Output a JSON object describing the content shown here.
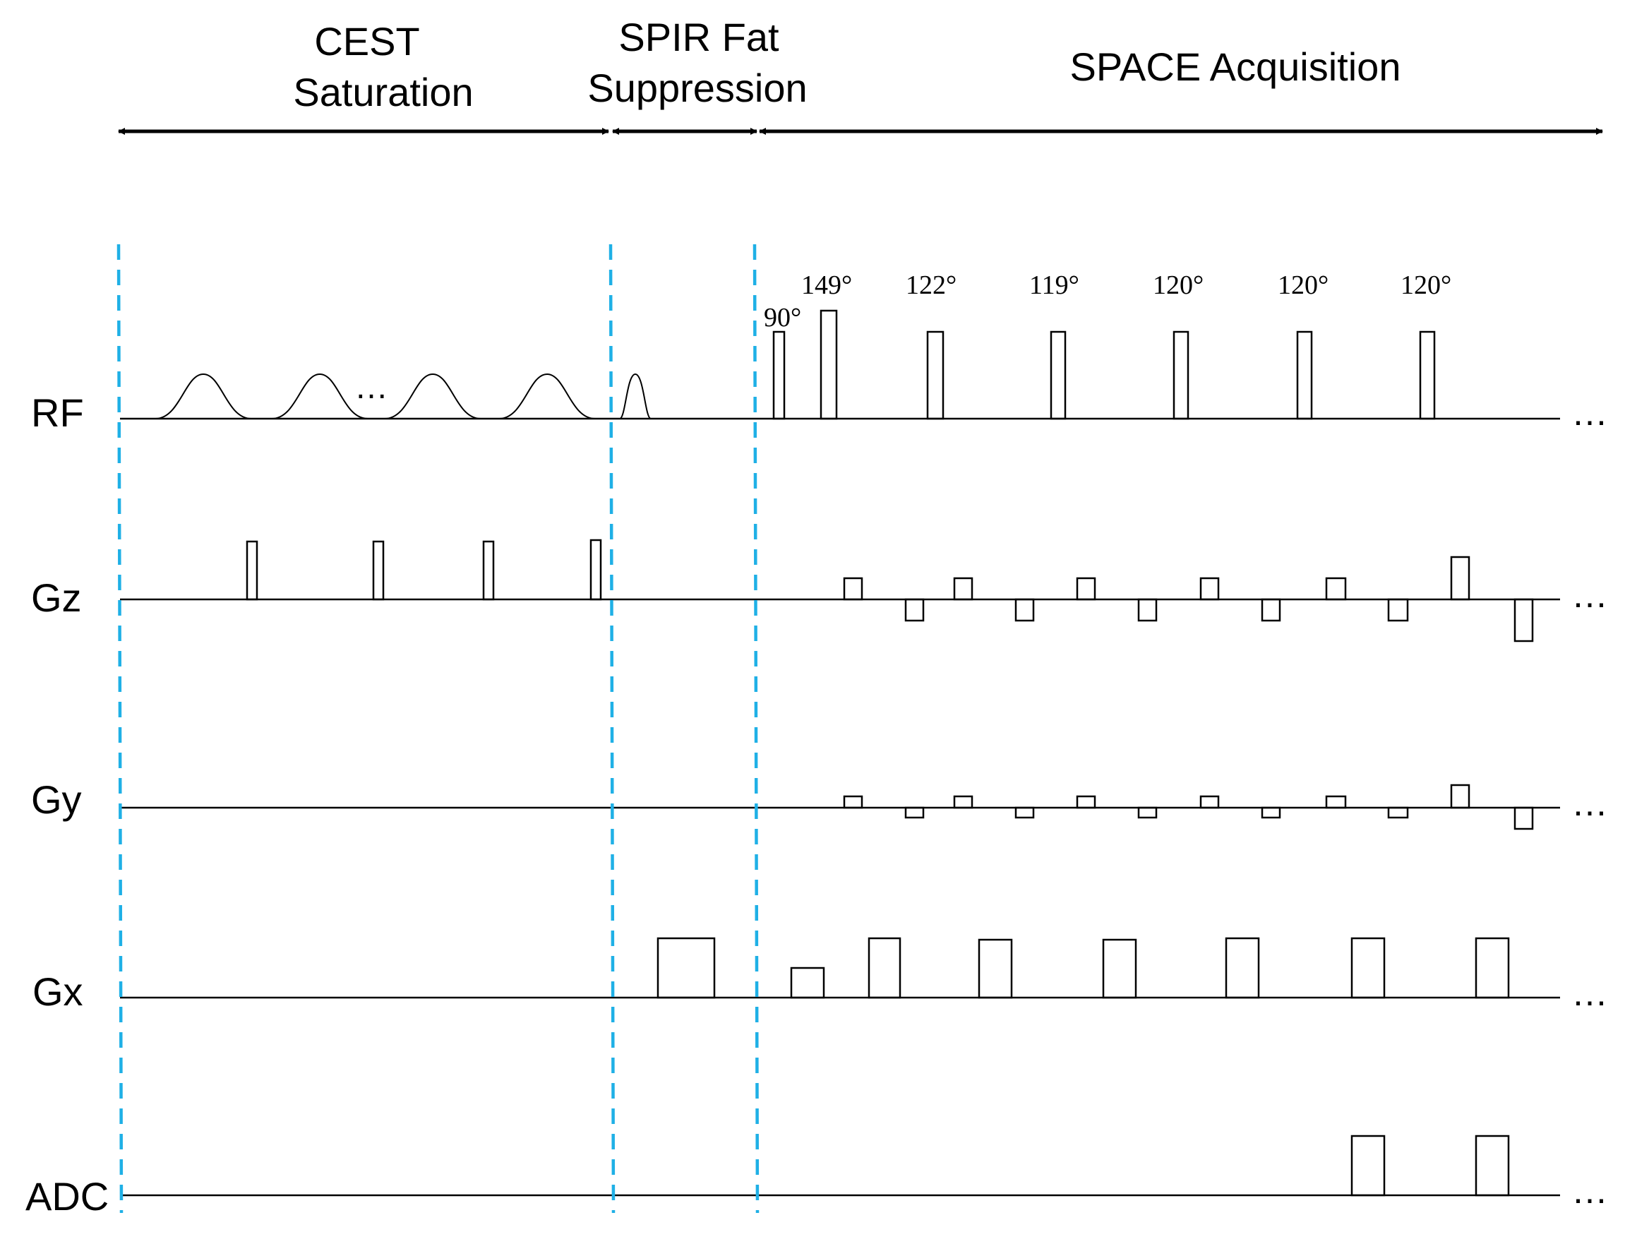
{
  "sections": {
    "cest": {
      "line1": "CEST",
      "line2": "Saturation"
    },
    "spir": {
      "line1": "SPIR Fat",
      "line2": "Suppression"
    },
    "space": {
      "label": "SPACE Acquisition"
    }
  },
  "channels": {
    "rf": "RF",
    "gz": "Gz",
    "gy": "Gy",
    "gx": "Gx",
    "adc": "ADC"
  },
  "flip_angles": [
    "90°",
    "149°",
    "122°",
    "119°",
    "120°",
    "120°",
    "120°"
  ],
  "continuation": "…",
  "cest_ellipsis": "…",
  "colors": {
    "divider": "#1fb0e6",
    "line": "#000000"
  }
}
